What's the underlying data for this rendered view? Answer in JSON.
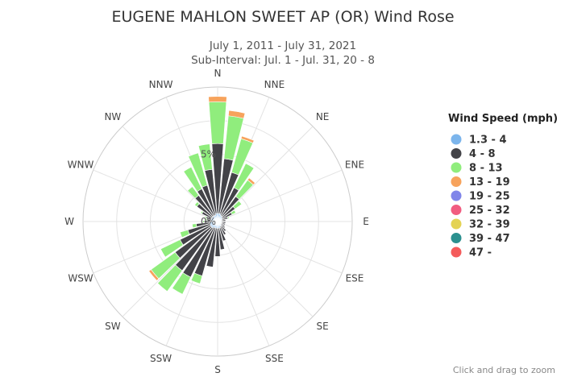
{
  "chart_data": {
    "type": "wind_rose",
    "title": "EUGENE MAHLON SWEET AP (OR) Wind Rose",
    "subtitle_line1": "July 1, 2011 - July 31, 2021",
    "subtitle_line2": "Sub-Interval: Jul. 1 - Jul. 31, 20 - 8",
    "radial_unit": "%",
    "radial_max": 10,
    "ring_labels": [
      {
        "value": 0,
        "label": "0%"
      },
      {
        "value": 5,
        "label": "5%"
      }
    ],
    "directions": [
      "N",
      "NNE",
      "NE",
      "ENE",
      "E",
      "ESE",
      "SE",
      "SSE",
      "S",
      "SSW",
      "SW",
      "WSW",
      "W",
      "WNW",
      "NW",
      "NNW"
    ],
    "bar_sectors": 36,
    "bar_directions_deg": [
      0,
      10,
      20,
      30,
      40,
      50,
      60,
      70,
      80,
      90,
      100,
      110,
      120,
      130,
      140,
      150,
      160,
      170,
      180,
      190,
      200,
      210,
      220,
      230,
      240,
      250,
      260,
      270,
      280,
      290,
      300,
      310,
      320,
      330,
      340,
      350
    ],
    "legend_title": "Wind Speed (mph)",
    "series": [
      {
        "name": "1.3 - 4",
        "color": "#7cb5ec",
        "values": [
          0.6,
          0.6,
          0.6,
          0.5,
          0.5,
          0.4,
          0.4,
          0.3,
          0.3,
          0.3,
          0.3,
          0.3,
          0.3,
          0.3,
          0.4,
          0.4,
          0.5,
          0.5,
          0.5,
          0.5,
          0.5,
          0.5,
          0.6,
          0.6,
          0.6,
          0.6,
          0.6,
          0.5,
          0.5,
          0.5,
          0.5,
          0.5,
          0.5,
          0.5,
          0.5,
          0.6
        ]
      },
      {
        "name": "4 - 8",
        "color": "#434348",
        "values": [
          5.2,
          4.1,
          3.2,
          2.3,
          1.8,
          1.2,
          0.8,
          0.5,
          0.3,
          0.3,
          0.3,
          0.3,
          0.3,
          0.4,
          0.5,
          0.7,
          1.0,
          1.6,
          2.1,
          2.9,
          3.7,
          4.1,
          3.9,
          3.3,
          2.5,
          1.7,
          1.0,
          0.5,
          0.3,
          0.4,
          0.8,
          1.4,
          1.9,
          2.2,
          2.3,
          3.3
        ]
      },
      {
        "name": "8 - 13",
        "color": "#90ed7d",
        "values": [
          3.1,
          3.2,
          2.6,
          2.0,
          1.5,
          0.6,
          0.3,
          0.1,
          0.0,
          0.0,
          0.0,
          0.0,
          0.0,
          0.0,
          0.0,
          0.0,
          0.0,
          0.0,
          0.0,
          0.0,
          0.6,
          1.4,
          1.9,
          2.2,
          1.6,
          0.6,
          0.3,
          0.1,
          0.1,
          0.1,
          0.1,
          0.2,
          0.8,
          1.8,
          2.5,
          1.9
        ]
      },
      {
        "name": "13 - 19",
        "color": "#f7a35c",
        "values": [
          0.4,
          0.4,
          0.2,
          0.0,
          0.2,
          0.0,
          0.0,
          0.0,
          0.0,
          0.0,
          0.0,
          0.0,
          0.0,
          0.0,
          0.0,
          0.0,
          0.0,
          0.0,
          0.0,
          0.0,
          0.0,
          0.0,
          0.0,
          0.2,
          0.0,
          0.0,
          0.0,
          0.0,
          0.0,
          0.0,
          0.0,
          0.0,
          0.0,
          0.0,
          0.0,
          0.0
        ]
      },
      {
        "name": "19 - 25",
        "color": "#8085e9",
        "values": []
      },
      {
        "name": "25 - 32",
        "color": "#f15c80",
        "values": []
      },
      {
        "name": "32 - 39",
        "color": "#e4d354",
        "values": []
      },
      {
        "name": "39 - 47",
        "color": "#2b908f",
        "values": []
      },
      {
        "name": "47 -",
        "color": "#f45b5b",
        "values": []
      }
    ],
    "hint": "Click and drag to zoom"
  }
}
